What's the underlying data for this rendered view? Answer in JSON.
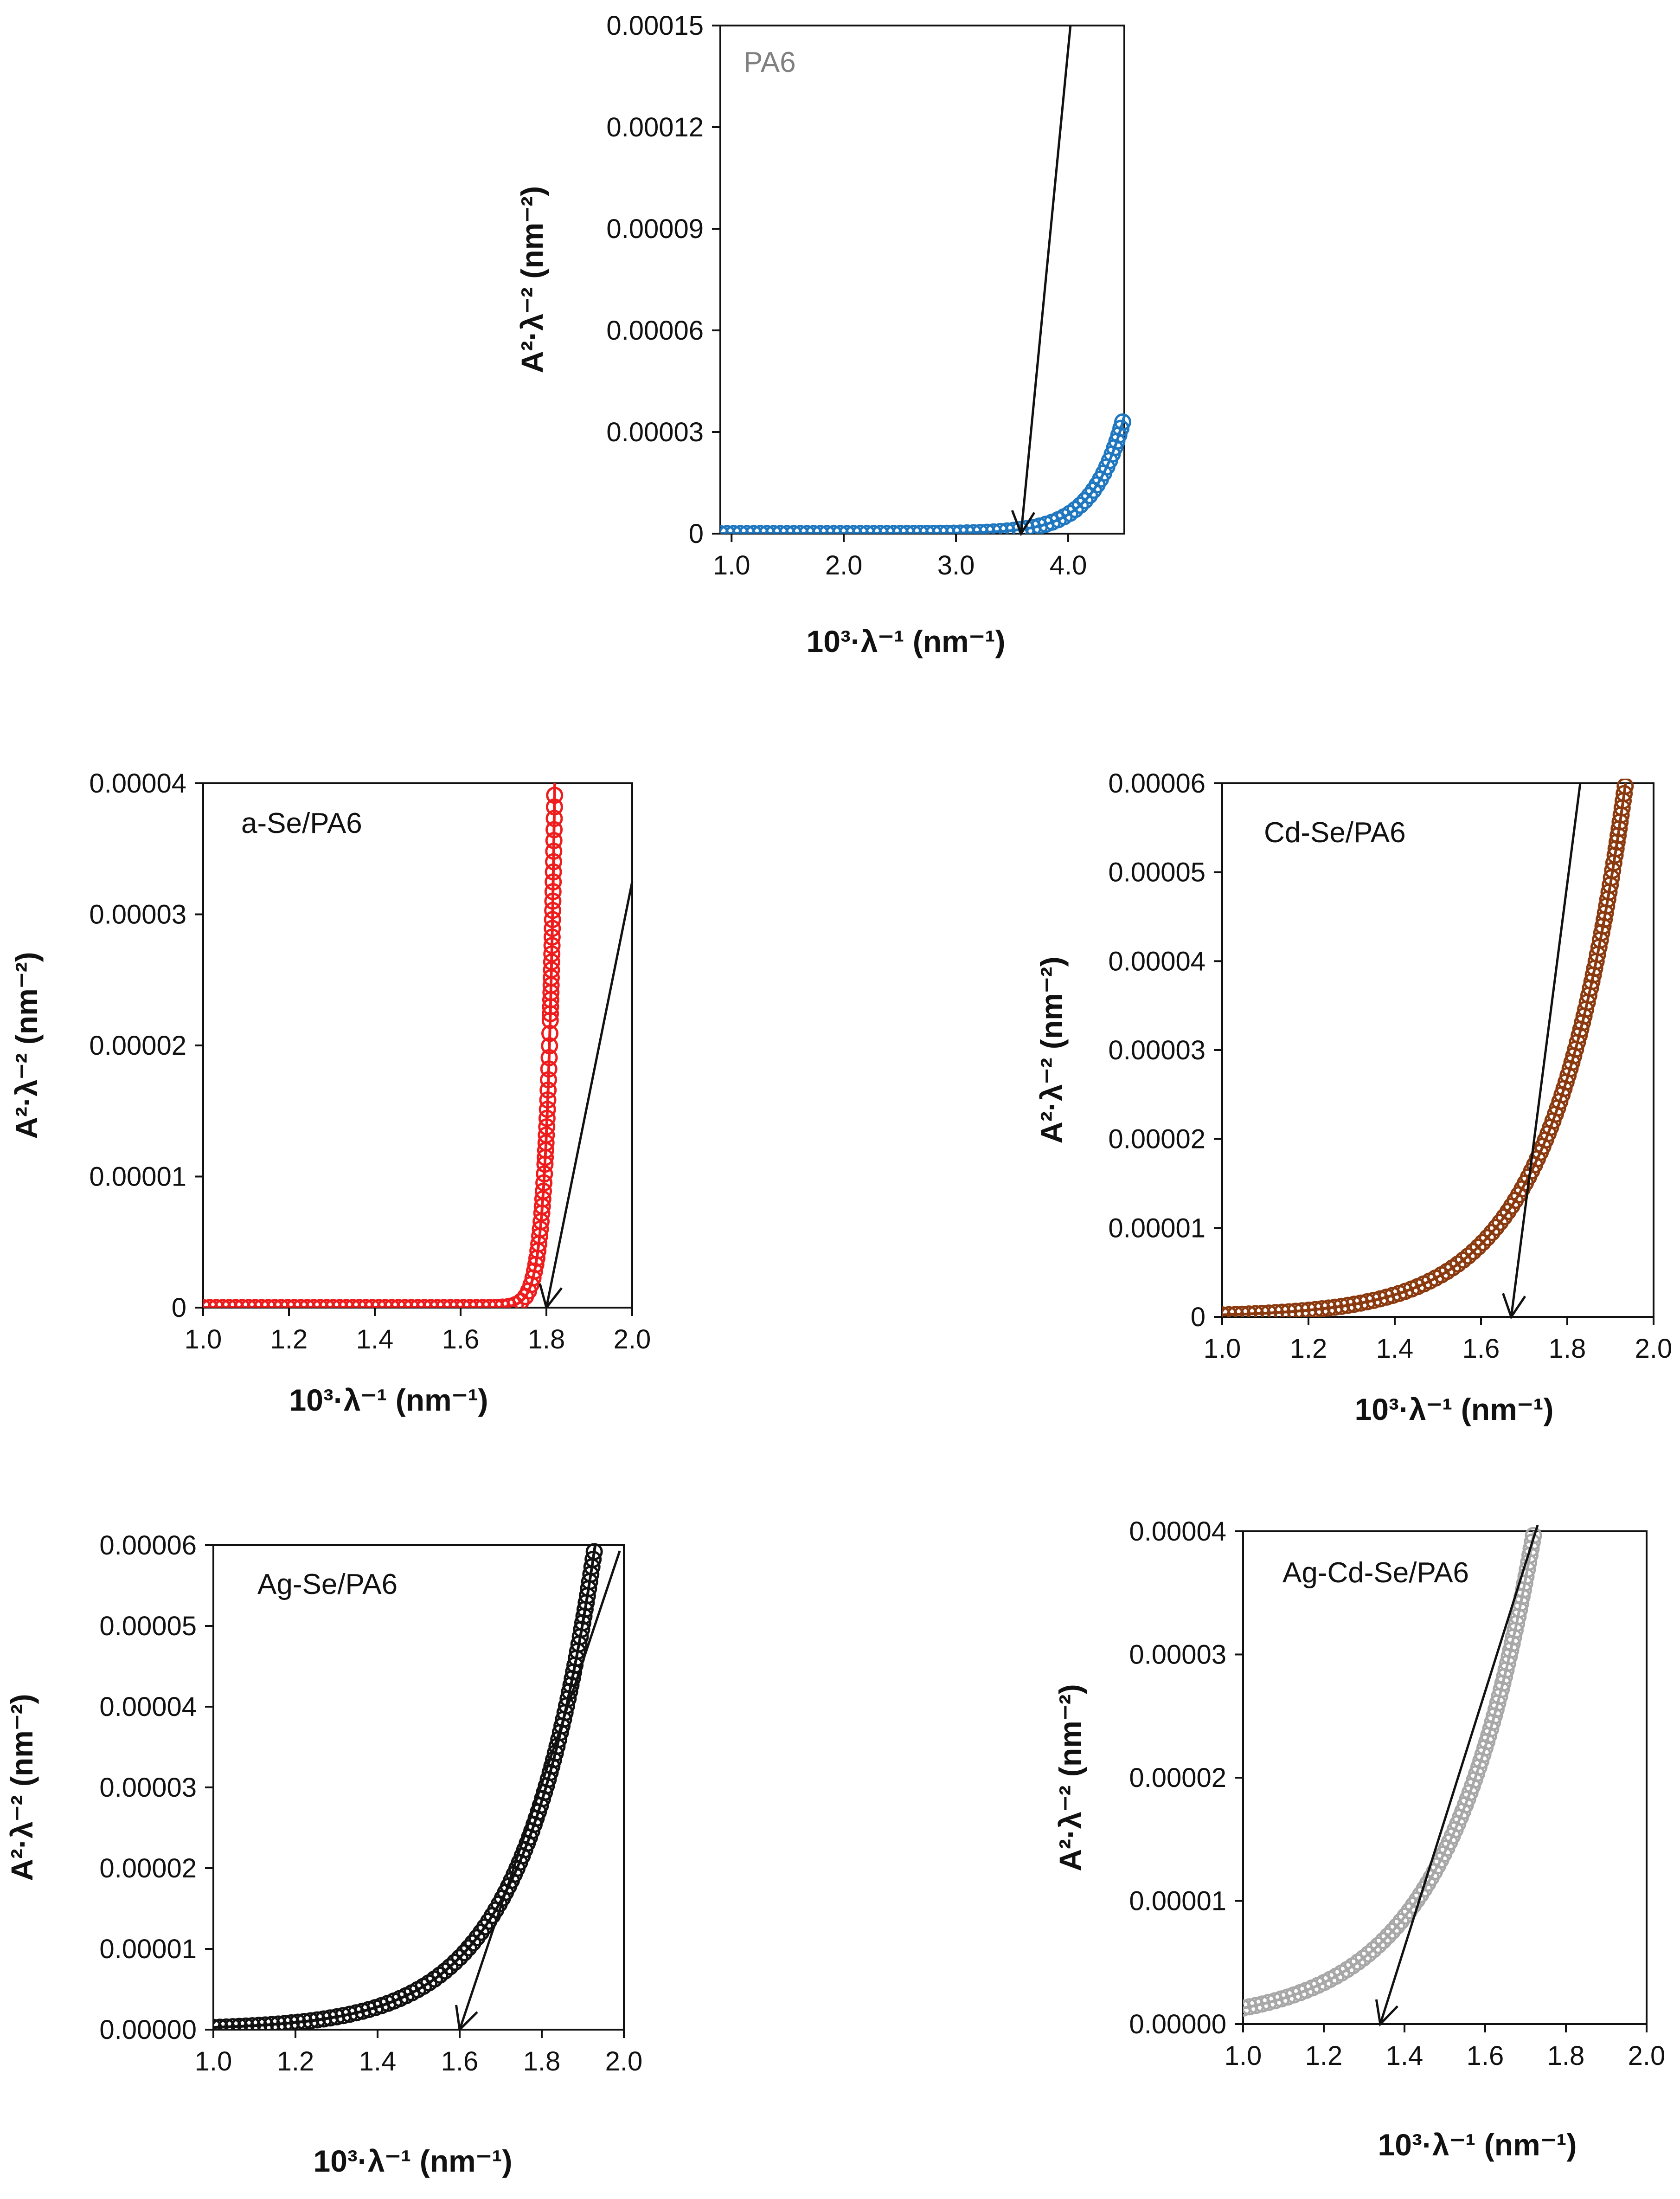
{
  "chart_data": [
    {
      "type": "scatter",
      "title": "",
      "label": "PA6",
      "label_color": "#808080",
      "color": "#1f77c0",
      "xlabel": "10³·λ⁻¹ (nm⁻¹)",
      "ylabel": "A²·λ⁻² (nm⁻²)",
      "xlim": [
        0.9,
        4.5
      ],
      "ylim": [
        0,
        0.00015
      ],
      "xticks": [
        1.0,
        2.0,
        3.0,
        4.0
      ],
      "xtick_labels": [
        "1.0",
        "2.0",
        "3.0",
        "4.0"
      ],
      "yticks": [
        0,
        3e-05,
        6e-05,
        9e-05,
        0.00012,
        0.00015
      ],
      "ytick_labels": [
        "0",
        "0.00003",
        "0.00006",
        "0.00009",
        "0.00012",
        "0.00015"
      ],
      "curve": {
        "x0": 0.9,
        "a": 7.6e-11,
        "k": 3.62
      },
      "fit_line": {
        "x": [
          3.58,
          4.02
        ],
        "y": [
          0,
          0.00015
        ]
      },
      "arrow_x": 3.58
    },
    {
      "type": "scatter",
      "title": "",
      "label": "a-Se/PA6",
      "label_color": "#111111",
      "color": "#ee1c1c",
      "xlabel": "10³·λ⁻¹ (nm⁻¹)",
      "ylabel": "A²·λ⁻² (nm⁻²)",
      "xlim": [
        1.0,
        2.0
      ],
      "ylim": [
        0,
        4e-05
      ],
      "xticks": [
        1.0,
        1.2,
        1.4,
        1.6,
        1.8,
        2.0
      ],
      "xtick_labels": [
        "1.0",
        "1.2",
        "1.4",
        "1.6",
        "1.8",
        "2.0"
      ],
      "yticks": [
        0,
        1e-05,
        2e-05,
        3e-05,
        4e-05
      ],
      "ytick_labels": [
        "0",
        "0.00001",
        "0.00002",
        "0.00003",
        "0.00004"
      ],
      "curve": {
        "x0": 1.0,
        "a": 3.1e-25,
        "k": 56.5
      },
      "fit_line": {
        "x": [
          1.8,
          2.0
        ],
        "y": [
          0,
          3.25e-05
        ]
      },
      "arrow_x": 1.8
    },
    {
      "type": "scatter",
      "title": "",
      "label": "Cd-Se/PA6",
      "label_color": "#111111",
      "color": "#8b3a10",
      "xlabel": "10³·λ⁻¹ (nm⁻¹)",
      "ylabel": "A²·λ⁻² (nm⁻²)",
      "xlim": [
        1.0,
        2.0
      ],
      "ylim": [
        0,
        6e-05
      ],
      "xticks": [
        1.0,
        1.2,
        1.4,
        1.6,
        1.8,
        2.0
      ],
      "xtick_labels": [
        "1.0",
        "1.2",
        "1.4",
        "1.6",
        "1.8",
        "2.0"
      ],
      "yticks": [
        0,
        1e-05,
        2e-05,
        3e-05,
        4e-05,
        5e-05,
        6e-05
      ],
      "ytick_labels": [
        "0",
        "0.00001",
        "0.00002",
        "0.00003",
        "0.00004",
        "0.00005",
        "0.00006"
      ],
      "curve": {
        "x0": 1.0,
        "a": 2.3e-07,
        "k": 5.95
      },
      "fit_line": {
        "x": [
          1.67,
          1.83
        ],
        "y": [
          0,
          6e-05
        ]
      },
      "arrow_x": 1.67
    },
    {
      "type": "scatter",
      "title": "",
      "label": "Ag-Se/PA6",
      "label_color": "#111111",
      "color": "#111111",
      "xlabel": "10³·λ⁻¹ (nm⁻¹)",
      "ylabel": "A²·λ⁻² (nm⁻²)",
      "xlim": [
        1.0,
        2.0
      ],
      "ylim": [
        0,
        6e-05
      ],
      "xticks": [
        1.0,
        1.2,
        1.4,
        1.6,
        1.8,
        2.0
      ],
      "xtick_labels": [
        "1.0",
        "1.2",
        "1.4",
        "1.6",
        "1.8",
        "2.0"
      ],
      "yticks": [
        0,
        1e-05,
        2e-05,
        3e-05,
        4e-05,
        5e-05,
        6e-05
      ],
      "ytick_labels": [
        "0.00000",
        "0.00001",
        "0.00002",
        "0.00003",
        "0.00004",
        "0.00005",
        "0.00006"
      ],
      "curve": {
        "x0": 1.0,
        "a": 2.8e-07,
        "k": 5.77
      },
      "fit_line": {
        "x": [
          1.6,
          1.99
        ],
        "y": [
          0,
          5.93e-05
        ]
      },
      "arrow_x": 1.6
    },
    {
      "type": "scatter",
      "title": "",
      "label": "Ag-Cd-Se/PA6",
      "label_color": "#111111",
      "color": "#a8a8a8",
      "xlabel": "10³·λ⁻¹ (nm⁻¹)",
      "ylabel": "A²·λ⁻² (nm⁻²)",
      "xlim": [
        1.0,
        2.0
      ],
      "ylim": [
        0,
        4e-05
      ],
      "xticks": [
        1.0,
        1.2,
        1.4,
        1.6,
        1.8,
        2.0
      ],
      "xtick_labels": [
        "1.0",
        "1.2",
        "1.4",
        "1.6",
        "1.8",
        "2.0"
      ],
      "yticks": [
        0,
        1e-05,
        2e-05,
        3e-05,
        4e-05
      ],
      "ytick_labels": [
        "0.00000",
        "0.00001",
        "0.00002",
        "0.00003",
        "0.00004"
      ],
      "curve": {
        "x0": 1.0,
        "a": 1.3e-06,
        "k": 4.75
      },
      "fit_line": {
        "x": [
          1.34,
          1.73
        ],
        "y": [
          0,
          4.05e-05
        ]
      },
      "arrow_x": 1.34
    }
  ]
}
